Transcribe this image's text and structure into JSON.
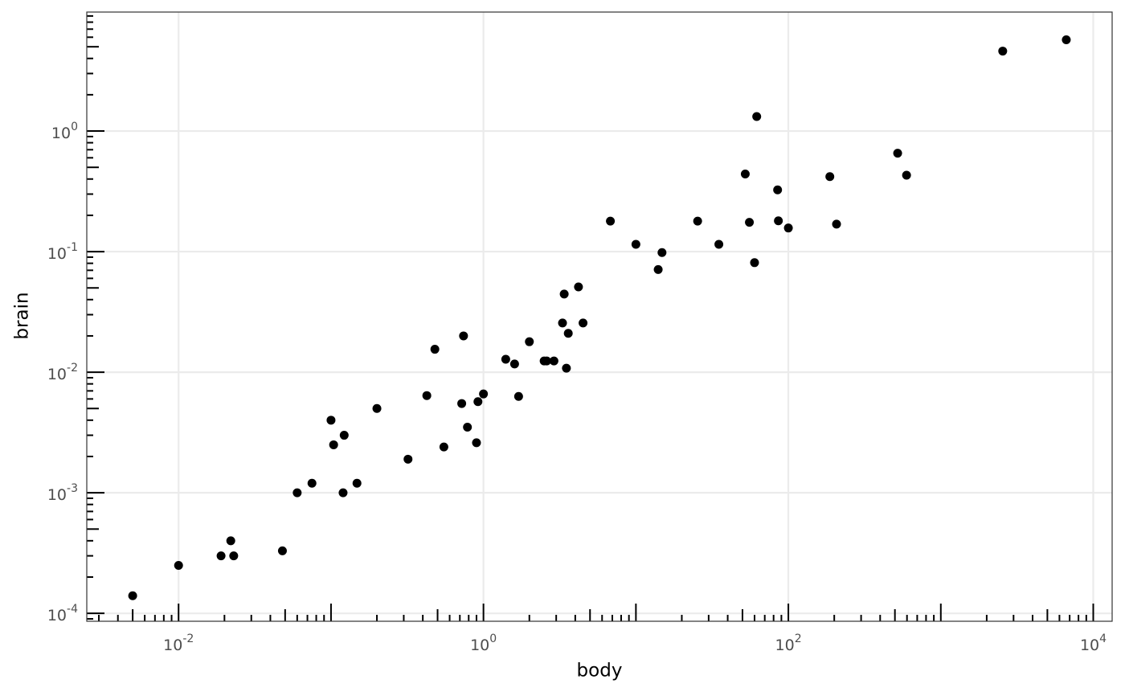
{
  "chart_data": {
    "type": "scatter",
    "x_label": "body",
    "y_label": "brain",
    "log_x": true,
    "log_y": true,
    "grid": true,
    "color": "#000000",
    "x": [
      0.005,
      0.01,
      0.019,
      0.023,
      0.022,
      0.048,
      0.06,
      0.075,
      0.1,
      0.104,
      0.12,
      0.122,
      0.148,
      0.2,
      0.32,
      0.425,
      0.48,
      0.55,
      0.72,
      0.74,
      0.785,
      0.9,
      0.92,
      1.0,
      1.4,
      1.6,
      1.7,
      2.0,
      2.5,
      2.6,
      2.9,
      3.3,
      3.385,
      3.5,
      3.6,
      4.2,
      4.5,
      6.8,
      10,
      14,
      14.83,
      25.4,
      35,
      52.16,
      55.5,
      60,
      62,
      85,
      86,
      100,
      187.1,
      207,
      521,
      596,
      2547,
      6654
    ],
    "y": [
      0.00014,
      0.00025,
      0.0003,
      0.0003,
      0.0004,
      0.00033,
      0.001,
      0.0012,
      0.004,
      0.0025,
      0.001,
      0.003,
      0.0012,
      0.005,
      0.0019,
      0.0064,
      0.0155,
      0.0024,
      0.0055,
      0.02,
      0.0035,
      0.0026,
      0.0057,
      0.0066,
      0.0128,
      0.0117,
      0.0063,
      0.0179,
      0.0124,
      0.0124,
      0.0124,
      0.0256,
      0.0445,
      0.0108,
      0.021,
      0.051,
      0.0256,
      0.179,
      0.115,
      0.071,
      0.0982,
      0.179,
      0.115,
      0.44,
      0.175,
      0.081,
      1.32,
      0.325,
      0.18,
      0.157,
      0.419,
      0.169,
      0.655,
      0.43,
      4.603,
      5.712
    ],
    "xlim": [
      0.0025,
      13300
    ],
    "ylim": [
      8.6e-05,
      9.7
    ],
    "xticks": [
      {
        "value": 0.01,
        "label": "10^-2"
      },
      {
        "value": 1,
        "label": "10^0"
      },
      {
        "value": 100,
        "label": "10^2"
      },
      {
        "value": 10000,
        "label": "10^4"
      }
    ],
    "yticks": [
      {
        "value": 0.0001,
        "label": "10^-4"
      },
      {
        "value": 0.001,
        "label": "10^-3"
      },
      {
        "value": 0.01,
        "label": "10^-2"
      },
      {
        "value": 0.1,
        "label": "10^-1"
      },
      {
        "value": 1,
        "label": "10^0"
      }
    ]
  }
}
